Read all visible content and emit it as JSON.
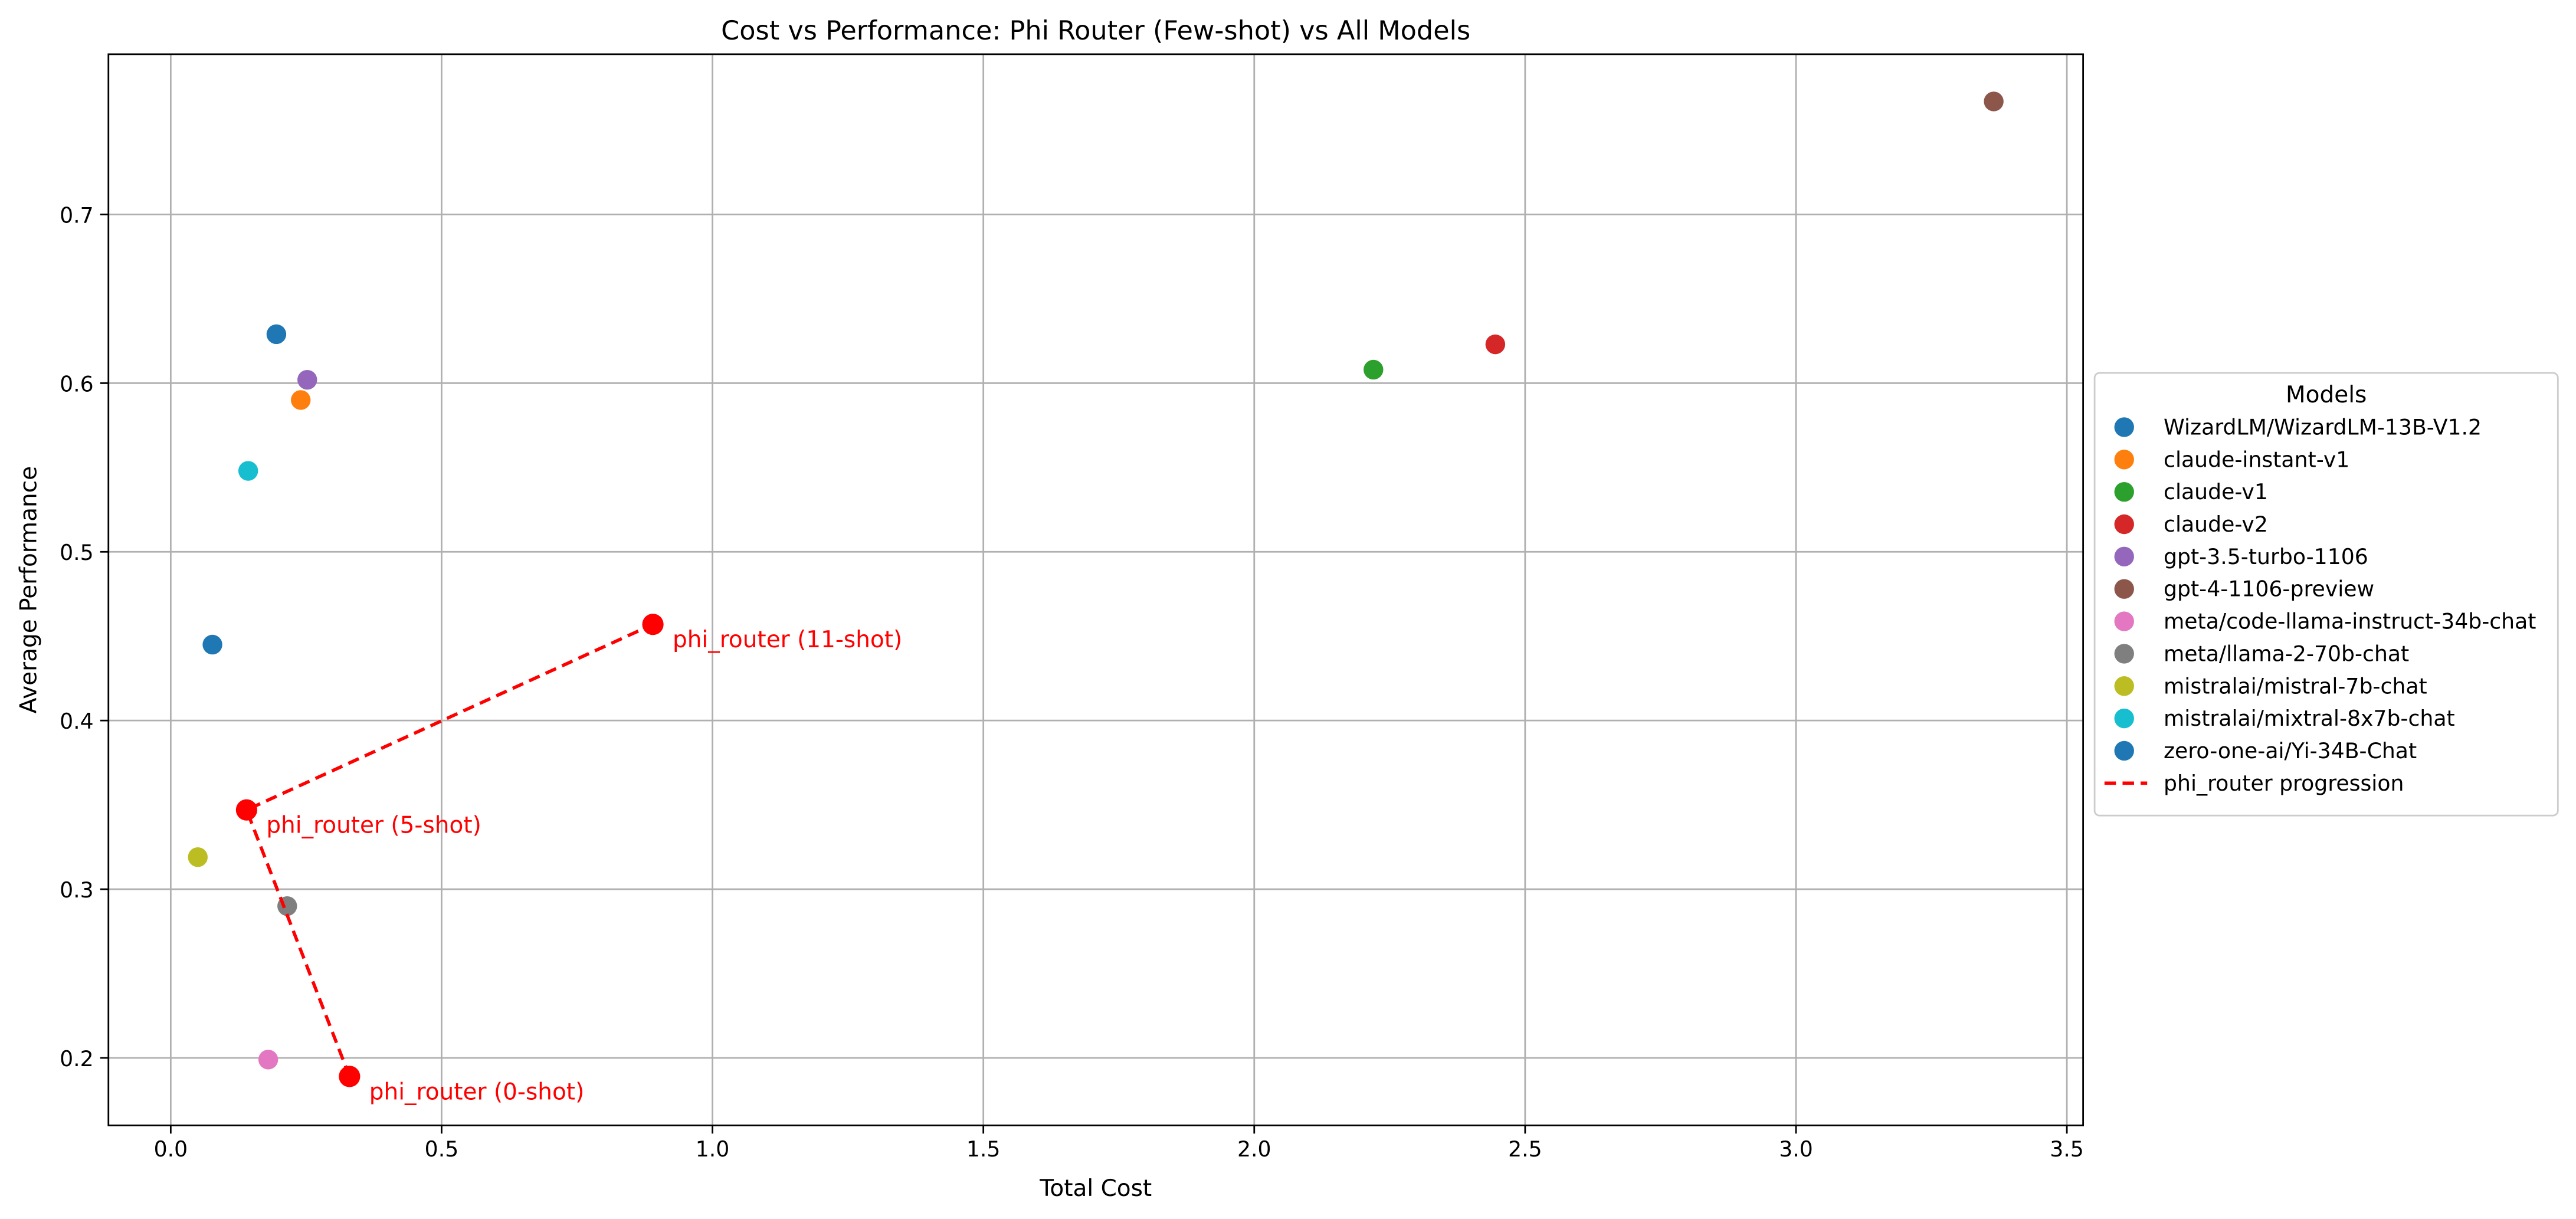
{
  "chart_data": {
    "type": "scatter",
    "title": "Cost vs Performance: Phi Router (Few-shot) vs All Models",
    "xlabel": "Total Cost",
    "ylabel": "Average Performance",
    "xlim": [
      -0.115,
      3.53
    ],
    "ylim": [
      0.16,
      0.795
    ],
    "xticks": [
      0.0,
      0.5,
      1.0,
      1.5,
      2.0,
      2.5,
      3.0,
      3.5
    ],
    "xtick_labels": [
      "0.0",
      "0.5",
      "1.0",
      "1.5",
      "2.0",
      "2.5",
      "3.0",
      "3.5"
    ],
    "yticks": [
      0.2,
      0.3,
      0.4,
      0.5,
      0.6,
      0.7
    ],
    "ytick_labels": [
      "0.2",
      "0.3",
      "0.4",
      "0.5",
      "0.6",
      "0.7"
    ],
    "grid": true,
    "legend": {
      "title": "Models",
      "placement": "right"
    },
    "series": [
      {
        "name": "WizardLM/WizardLM-13B-V1.2",
        "color": "#1f77b4",
        "x": 0.195,
        "y": 0.629
      },
      {
        "name": "claude-instant-v1",
        "color": "#ff7f0e",
        "x": 0.24,
        "y": 0.59
      },
      {
        "name": "claude-v1",
        "color": "#2ca02c",
        "x": 2.22,
        "y": 0.608
      },
      {
        "name": "claude-v2",
        "color": "#d62728",
        "x": 2.445,
        "y": 0.623
      },
      {
        "name": "gpt-3.5-turbo-1106",
        "color": "#9467bd",
        "x": 0.252,
        "y": 0.602
      },
      {
        "name": "gpt-4-1106-preview",
        "color": "#8c564b",
        "x": 3.365,
        "y": 0.767
      },
      {
        "name": "meta/code-llama-instruct-34b-chat",
        "color": "#e377c2",
        "x": 0.18,
        "y": 0.199
      },
      {
        "name": "meta/llama-2-70b-chat",
        "color": "#7f7f7f",
        "x": 0.215,
        "y": 0.29
      },
      {
        "name": "mistralai/mistral-7b-chat",
        "color": "#bcbd22",
        "x": 0.05,
        "y": 0.319
      },
      {
        "name": "mistralai/mixtral-8x7b-chat",
        "color": "#17becf",
        "x": 0.143,
        "y": 0.548
      },
      {
        "name": "zero-one-ai/Yi-34B-Chat",
        "color": "#1f77b4",
        "x": 0.077,
        "y": 0.445
      }
    ],
    "progression": {
      "name": "phi_router progression",
      "color": "#ff0000",
      "line_style": "dashed",
      "points": [
        {
          "label": "phi_router (0-shot)",
          "x": 0.33,
          "y": 0.189
        },
        {
          "label": "phi_router (5-shot)",
          "x": 0.14,
          "y": 0.347
        },
        {
          "label": "phi_router (11-shot)",
          "x": 0.89,
          "y": 0.457
        }
      ]
    }
  }
}
